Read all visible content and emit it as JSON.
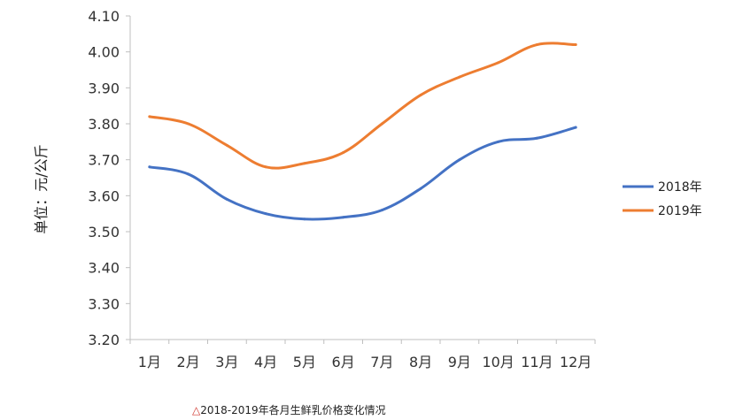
{
  "chart_data": {
    "type": "line",
    "title": "",
    "xlabel": "",
    "ylabel": "单位：元/公斤",
    "categories": [
      "1月",
      "2月",
      "3月",
      "4月",
      "5月",
      "6月",
      "7月",
      "8月",
      "9月",
      "10月",
      "11月",
      "12月"
    ],
    "series": [
      {
        "name": "2018年",
        "color": "#4472c4",
        "values": [
          3.68,
          3.66,
          3.59,
          3.55,
          3.535,
          3.54,
          3.56,
          3.62,
          3.7,
          3.75,
          3.76,
          3.79
        ]
      },
      {
        "name": "2019年",
        "color": "#ed7d31",
        "values": [
          3.82,
          3.8,
          3.74,
          3.68,
          3.69,
          3.72,
          3.8,
          3.88,
          3.93,
          3.97,
          4.02,
          4.02
        ]
      }
    ],
    "ylim": [
      3.2,
      4.1
    ],
    "yticks": [
      "3.20",
      "3.30",
      "3.40",
      "3.50",
      "3.60",
      "3.70",
      "3.80",
      "3.90",
      "4.00",
      "4.10"
    ],
    "grid": false,
    "legend": "right"
  },
  "caption": {
    "marker": "△",
    "text": "2018-2019年各月生鲜乳价格变化情况"
  }
}
